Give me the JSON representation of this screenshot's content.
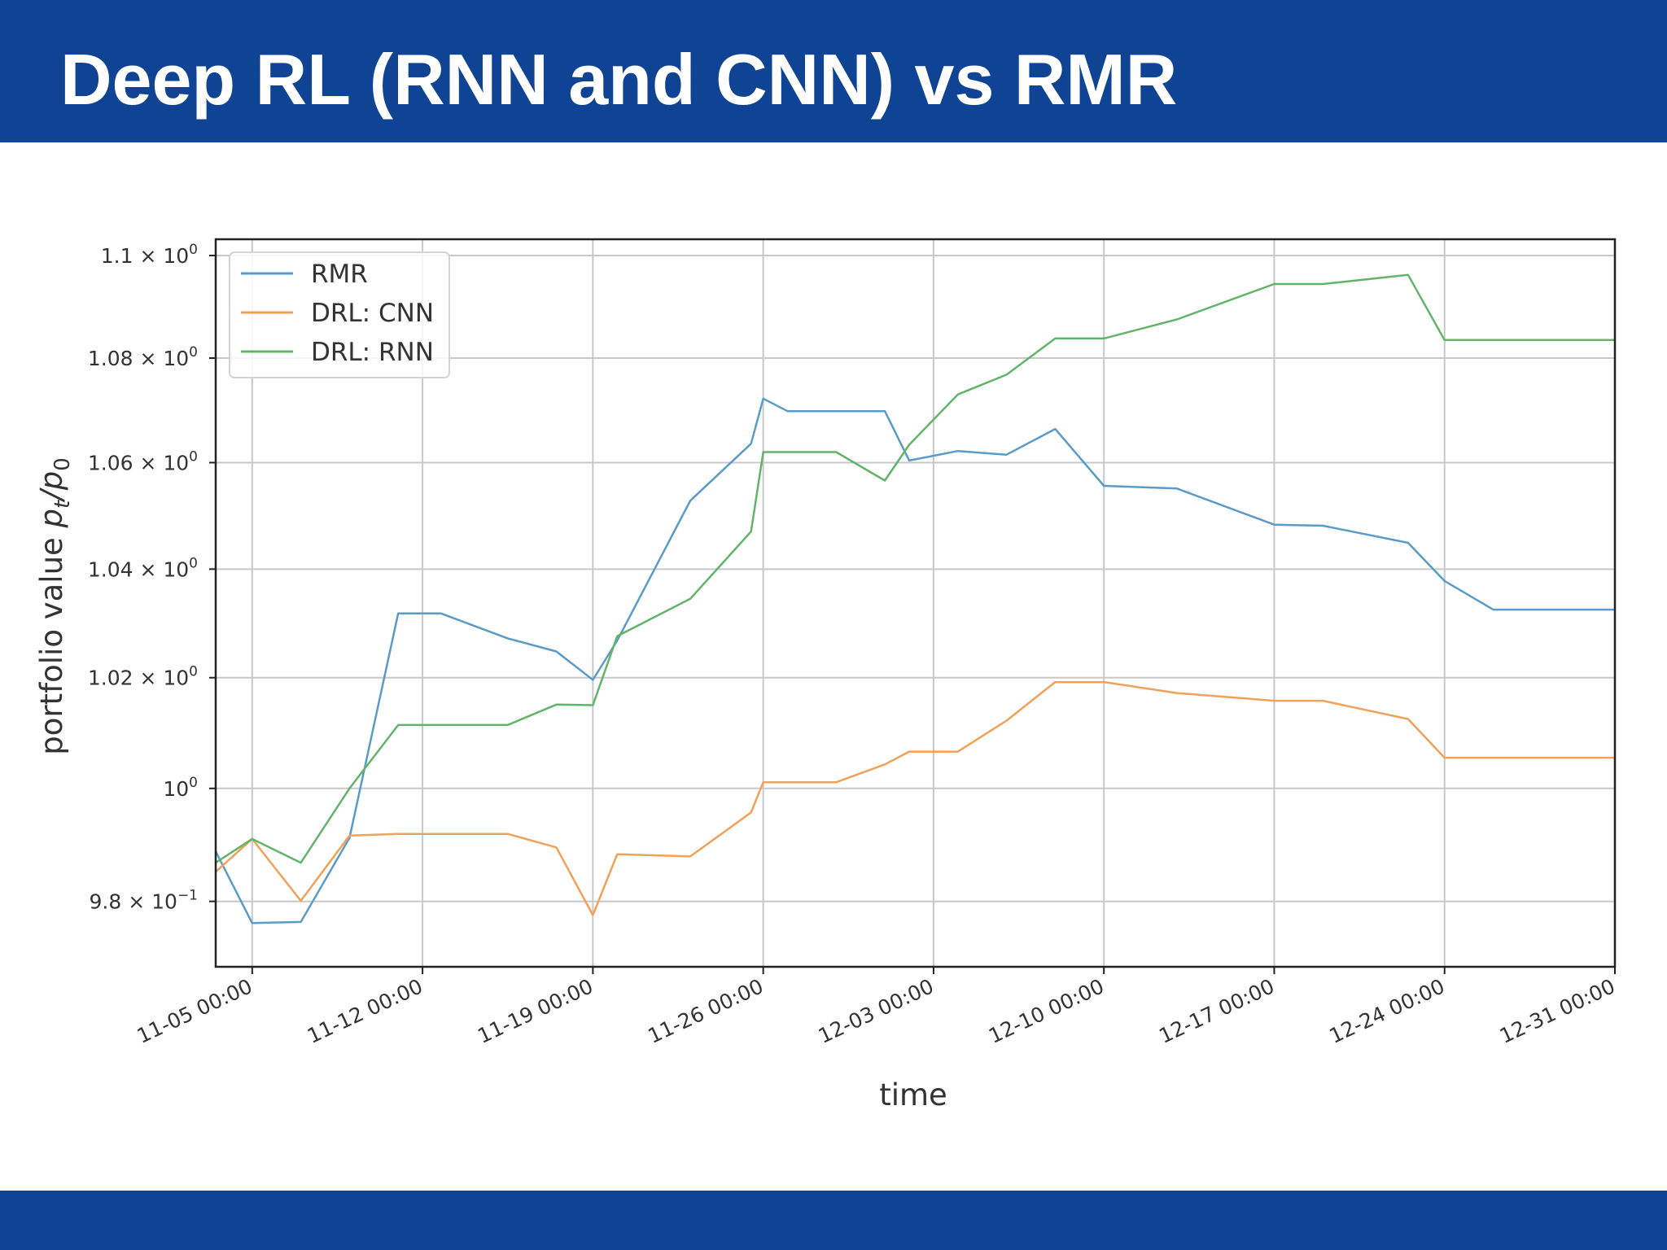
{
  "slide": {
    "title": "Deep RL (RNN and CNN) vs RMR"
  },
  "theme": {
    "band_color": "#0f4494",
    "title_color": "#ffffff"
  },
  "chart_data": {
    "type": "line",
    "title": "",
    "xlabel": "time",
    "ylabel": "portfolio value p_t/p_0",
    "yscale": "log",
    "grid": true,
    "legend_position": "top-left",
    "xlim": [
      "2018-11-03 12:00",
      "2018-12-31 00:00"
    ],
    "ylim": [
      0.9686,
      1.1032
    ],
    "x_ticks": [
      {
        "value": "2018-11-05 00:00",
        "label": "11-05 00:00"
      },
      {
        "value": "2018-11-12 00:00",
        "label": "11-12 00:00"
      },
      {
        "value": "2018-11-19 00:00",
        "label": "11-19 00:00"
      },
      {
        "value": "2018-11-26 00:00",
        "label": "11-26 00:00"
      },
      {
        "value": "2018-12-03 00:00",
        "label": "12-03 00:00"
      },
      {
        "value": "2018-12-10 00:00",
        "label": "12-10 00:00"
      },
      {
        "value": "2018-12-17 00:00",
        "label": "12-17 00:00"
      },
      {
        "value": "2018-12-24 00:00",
        "label": "12-24 00:00"
      },
      {
        "value": "2018-12-31 00:00",
        "label": "12-31 00:00"
      }
    ],
    "y_ticks": [
      {
        "value": 0.98,
        "base": "9.8 × 10",
        "exp": "−1"
      },
      {
        "value": 1.0,
        "base": "10",
        "exp": "0"
      },
      {
        "value": 1.02,
        "base": "1.02 × 10",
        "exp": "0"
      },
      {
        "value": 1.04,
        "base": "1.04 × 10",
        "exp": "0"
      },
      {
        "value": 1.06,
        "base": "1.06 × 10",
        "exp": "0"
      },
      {
        "value": 1.08,
        "base": "1.08 × 10",
        "exp": "0"
      },
      {
        "value": 1.1,
        "base": "1.1 × 10",
        "exp": "0"
      }
    ],
    "x": [
      "2018-11-03 12:00",
      "2018-11-05 00:00",
      "2018-11-07 00:00",
      "2018-11-09 00:00",
      "2018-11-11 00:00",
      "2018-11-12 18:00",
      "2018-11-15 12:00",
      "2018-11-17 12:00",
      "2018-11-19 00:00",
      "2018-11-20 00:00",
      "2018-11-23 00:00",
      "2018-11-25 12:00",
      "2018-11-26 00:00",
      "2018-11-27 00:00",
      "2018-11-29 00:00",
      "2018-12-01 00:00",
      "2018-12-02 00:00",
      "2018-12-04 00:00",
      "2018-12-06 00:00",
      "2018-12-08 00:00",
      "2018-12-10 00:00",
      "2018-12-13 00:00",
      "2018-12-17 00:00",
      "2018-12-19 00:00",
      "2018-12-22 12:00",
      "2018-12-24 00:00",
      "2018-12-26 00:00",
      "2018-12-28 00:00",
      "2018-12-31 00:00"
    ],
    "series": [
      {
        "name": "RMR",
        "color": "#5b9bc7",
        "values": [
          0.9888,
          0.9762,
          0.9764,
          0.9912,
          1.0318,
          1.0318,
          1.0272,
          1.0248,
          1.0196,
          1.0268,
          1.0528,
          1.0636,
          1.0722,
          1.0698,
          1.0698,
          1.0698,
          1.0604,
          1.0622,
          1.0615,
          1.0664,
          1.0556,
          1.0551,
          1.0483,
          1.0481,
          1.0449,
          1.0378,
          1.0325,
          1.0325,
          1.0325
        ]
      },
      {
        "name": "DRL: CNN",
        "color": "#f0a25a",
        "values": [
          0.9852,
          0.991,
          0.9801,
          0.9916,
          0.9919,
          0.9919,
          0.9919,
          0.9895,
          0.9776,
          0.9883,
          0.9879,
          0.9957,
          1.0011,
          1.0011,
          1.0011,
          1.0043,
          1.0066,
          1.0066,
          1.0122,
          1.0192,
          1.0192,
          1.0172,
          1.0158,
          1.0158,
          1.0125,
          1.0055,
          1.0055,
          1.0055,
          1.0055
        ]
      },
      {
        "name": "DRL: RNN",
        "color": "#63b46b",
        "values": [
          0.9868,
          0.991,
          0.9868,
          1.0,
          1.0114,
          1.0114,
          1.0114,
          1.0151,
          1.015,
          1.0276,
          1.0345,
          1.047,
          1.062,
          1.062,
          1.062,
          1.0566,
          1.0634,
          1.073,
          1.0768,
          1.0838,
          1.0838,
          1.0875,
          1.0944,
          1.0944,
          1.0962,
          1.0835,
          1.0835,
          1.0835,
          1.0835
        ]
      }
    ]
  }
}
